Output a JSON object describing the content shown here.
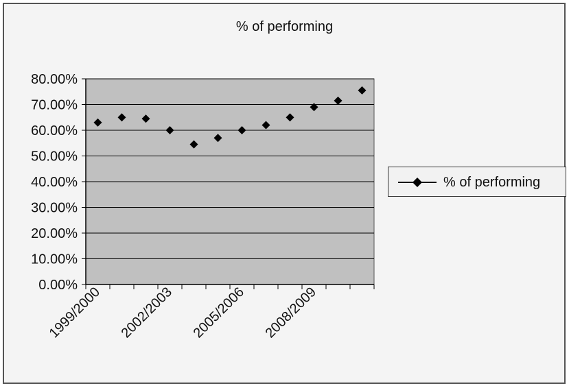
{
  "chart_data": {
    "type": "line",
    "title": "% of performing",
    "xlabel": "",
    "ylabel": "",
    "x_tick_labels": [
      "1999/2000",
      "2002/2003",
      "2005/2006",
      "2008/2009"
    ],
    "y_tick_labels": [
      "0.00%",
      "10.00%",
      "20.00%",
      "30.00%",
      "40.00%",
      "50.00%",
      "60.00%",
      "70.00%",
      "80.00%"
    ],
    "ylim": [
      0,
      80
    ],
    "grid": true,
    "legend_position": "right",
    "series": [
      {
        "name": "% of performing",
        "color": "#000000",
        "marker": "diamond",
        "line": false,
        "values": [
          63.0,
          65.0,
          64.5,
          60.0,
          54.5,
          57.0,
          60.0,
          62.0,
          65.0,
          69.0,
          71.5,
          75.5
        ]
      }
    ],
    "plot_background": "#c0c0c0",
    "gridline_color": "#000000"
  }
}
